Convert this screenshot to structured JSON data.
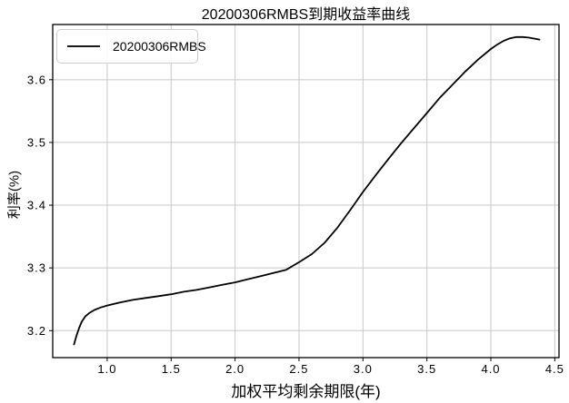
{
  "figure": {
    "title": "20200306RMBS到期收益率曲线",
    "x_axis_label": "加权平均剩余期限(年)",
    "y_axis_label": "利率(%)",
    "legend": {
      "label": "20200306RMBS",
      "line_color": "#000000"
    },
    "colors": {
      "curve": "#000000",
      "grid": "#c8c8c8",
      "spine": "#000000",
      "background": "#ffffff",
      "text": "#000000",
      "legend_border": "#cccccc"
    }
  },
  "chart_data": {
    "type": "line",
    "title": "20200306RMBS到期收益率曲线",
    "xlabel": "加权平均剩余期限(年)",
    "ylabel": "利率(%)",
    "grid": true,
    "legend_position": "upper left",
    "xlim": [
      0.574,
      4.533
    ],
    "ylim": [
      3.157,
      3.688
    ],
    "x_ticks": [
      1.0,
      1.5,
      2.0,
      2.5,
      3.0,
      3.5,
      4.0,
      4.5
    ],
    "x_tick_labels": [
      "1.0",
      "1.5",
      "2.0",
      "2.5",
      "3.0",
      "3.5",
      "4.0",
      "4.5"
    ],
    "y_ticks": [
      3.2,
      3.3,
      3.4,
      3.5,
      3.6
    ],
    "y_tick_labels": [
      "3.2",
      "3.3",
      "3.4",
      "3.5",
      "3.6"
    ],
    "series": [
      {
        "name": "20200306RMBS",
        "color": "#000000",
        "points": [
          [
            0.74,
            3.178
          ],
          [
            0.76,
            3.192
          ],
          [
            0.78,
            3.204
          ],
          [
            0.8,
            3.214
          ],
          [
            0.83,
            3.223
          ],
          [
            0.86,
            3.228
          ],
          [
            0.9,
            3.233
          ],
          [
            0.95,
            3.237
          ],
          [
            1.0,
            3.24
          ],
          [
            1.1,
            3.245
          ],
          [
            1.2,
            3.249
          ],
          [
            1.3,
            3.252
          ],
          [
            1.4,
            3.255
          ],
          [
            1.5,
            3.258
          ],
          [
            1.6,
            3.262
          ],
          [
            1.7,
            3.265
          ],
          [
            1.8,
            3.269
          ],
          [
            1.9,
            3.273
          ],
          [
            2.0,
            3.277
          ],
          [
            2.1,
            3.282
          ],
          [
            2.2,
            3.287
          ],
          [
            2.3,
            3.292
          ],
          [
            2.4,
            3.297
          ],
          [
            2.5,
            3.309
          ],
          [
            2.6,
            3.322
          ],
          [
            2.7,
            3.34
          ],
          [
            2.8,
            3.364
          ],
          [
            2.9,
            3.392
          ],
          [
            3.0,
            3.421
          ],
          [
            3.1,
            3.448
          ],
          [
            3.2,
            3.474
          ],
          [
            3.3,
            3.499
          ],
          [
            3.4,
            3.523
          ],
          [
            3.5,
            3.547
          ],
          [
            3.6,
            3.571
          ],
          [
            3.7,
            3.592
          ],
          [
            3.8,
            3.613
          ],
          [
            3.9,
            3.632
          ],
          [
            4.0,
            3.649
          ],
          [
            4.05,
            3.656
          ],
          [
            4.1,
            3.662
          ],
          [
            4.15,
            3.666
          ],
          [
            4.2,
            3.668
          ],
          [
            4.25,
            3.668
          ],
          [
            4.3,
            3.667
          ],
          [
            4.38,
            3.664
          ]
        ]
      }
    ]
  }
}
